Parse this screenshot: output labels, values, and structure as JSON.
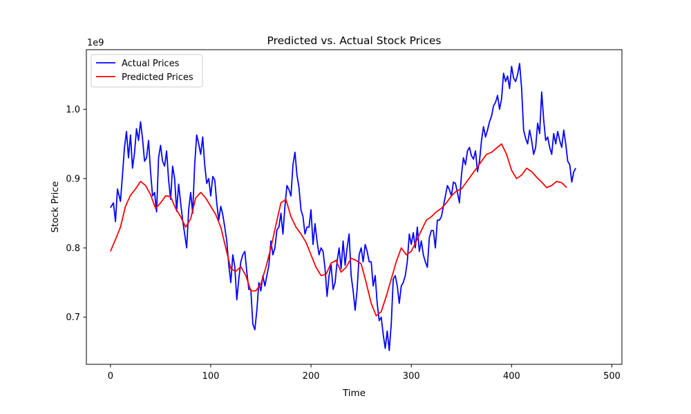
{
  "chart_data": {
    "type": "line",
    "title": "Predicted vs. Actual Stock Prices",
    "xlabel": "Time",
    "ylabel": "Stock Price",
    "y_offset_text": "1e9",
    "y_scale_factor": 1000000000,
    "xlim": [
      -24,
      510
    ],
    "ylim": [
      632000000.0,
      1086000000.0
    ],
    "xticks": [
      0,
      100,
      200,
      300,
      400,
      500
    ],
    "yticks": [
      700000000.0,
      800000000.0,
      900000000.0,
      1000000000.0
    ],
    "grid": false,
    "legend_position": "top-left",
    "series": [
      {
        "name": "Actual Prices",
        "color": "#0000ff",
        "points": [
          [
            0,
            0.858
          ],
          [
            3,
            0.865
          ],
          [
            5,
            0.838
          ],
          [
            7,
            0.885
          ],
          [
            10,
            0.867
          ],
          [
            12,
            0.905
          ],
          [
            14,
            0.945
          ],
          [
            16,
            0.968
          ],
          [
            18,
            0.93
          ],
          [
            20,
            0.963
          ],
          [
            22,
            0.915
          ],
          [
            24,
            0.937
          ],
          [
            26,
            0.972
          ],
          [
            28,
            0.955
          ],
          [
            30,
            0.982
          ],
          [
            32,
            0.958
          ],
          [
            34,
            0.925
          ],
          [
            36,
            0.93
          ],
          [
            38,
            0.955
          ],
          [
            40,
            0.91
          ],
          [
            42,
            0.875
          ],
          [
            44,
            0.88
          ],
          [
            46,
            0.852
          ],
          [
            48,
            0.93
          ],
          [
            50,
            0.948
          ],
          [
            52,
            0.925
          ],
          [
            54,
            0.918
          ],
          [
            56,
            0.94
          ],
          [
            58,
            0.898
          ],
          [
            60,
            0.87
          ],
          [
            62,
            0.918
          ],
          [
            64,
            0.9
          ],
          [
            66,
            0.853
          ],
          [
            68,
            0.892
          ],
          [
            70,
            0.865
          ],
          [
            72,
            0.84
          ],
          [
            74,
            0.82
          ],
          [
            76,
            0.8
          ],
          [
            78,
            0.855
          ],
          [
            80,
            0.88
          ],
          [
            82,
            0.85
          ],
          [
            84,
            0.92
          ],
          [
            86,
            0.963
          ],
          [
            88,
            0.95
          ],
          [
            90,
            0.935
          ],
          [
            92,
            0.96
          ],
          [
            94,
            0.92
          ],
          [
            96,
            0.893
          ],
          [
            98,
            0.9
          ],
          [
            100,
            0.875
          ],
          [
            102,
            0.903
          ],
          [
            104,
            0.898
          ],
          [
            106,
            0.865
          ],
          [
            108,
            0.84
          ],
          [
            110,
            0.86
          ],
          [
            112,
            0.848
          ],
          [
            114,
            0.83
          ],
          [
            116,
            0.81
          ],
          [
            118,
            0.775
          ],
          [
            120,
            0.75
          ],
          [
            122,
            0.79
          ],
          [
            124,
            0.773
          ],
          [
            126,
            0.725
          ],
          [
            128,
            0.755
          ],
          [
            130,
            0.78
          ],
          [
            132,
            0.79
          ],
          [
            134,
            0.795
          ],
          [
            136,
            0.765
          ],
          [
            138,
            0.74
          ],
          [
            140,
            0.74
          ],
          [
            142,
            0.69
          ],
          [
            144,
            0.682
          ],
          [
            146,
            0.71
          ],
          [
            148,
            0.75
          ],
          [
            150,
            0.738
          ],
          [
            152,
            0.76
          ],
          [
            154,
            0.745
          ],
          [
            156,
            0.76
          ],
          [
            158,
            0.775
          ],
          [
            160,
            0.81
          ],
          [
            162,
            0.79
          ],
          [
            164,
            0.8
          ],
          [
            166,
            0.826
          ],
          [
            168,
            0.83
          ],
          [
            170,
            0.85
          ],
          [
            172,
            0.82
          ],
          [
            174,
            0.86
          ],
          [
            176,
            0.89
          ],
          [
            178,
            0.884
          ],
          [
            180,
            0.875
          ],
          [
            182,
            0.92
          ],
          [
            184,
            0.938
          ],
          [
            186,
            0.905
          ],
          [
            188,
            0.887
          ],
          [
            190,
            0.855
          ],
          [
            192,
            0.845
          ],
          [
            194,
            0.82
          ],
          [
            196,
            0.83
          ],
          [
            198,
            0.83
          ],
          [
            200,
            0.855
          ],
          [
            202,
            0.805
          ],
          [
            204,
            0.835
          ],
          [
            206,
            0.81
          ],
          [
            208,
            0.79
          ],
          [
            210,
            0.8
          ],
          [
            212,
            0.795
          ],
          [
            214,
            0.77
          ],
          [
            216,
            0.73
          ],
          [
            218,
            0.76
          ],
          [
            220,
            0.776
          ],
          [
            222,
            0.74
          ],
          [
            224,
            0.75
          ],
          [
            226,
            0.78
          ],
          [
            228,
            0.8
          ],
          [
            230,
            0.77
          ],
          [
            232,
            0.81
          ],
          [
            234,
            0.775
          ],
          [
            236,
            0.8
          ],
          [
            238,
            0.82
          ],
          [
            240,
            0.76
          ],
          [
            242,
            0.738
          ],
          [
            244,
            0.71
          ],
          [
            246,
            0.74
          ],
          [
            248,
            0.79
          ],
          [
            250,
            0.8
          ],
          [
            252,
            0.78
          ],
          [
            254,
            0.805
          ],
          [
            256,
            0.795
          ],
          [
            258,
            0.78
          ],
          [
            260,
            0.78
          ],
          [
            262,
            0.745
          ],
          [
            264,
            0.76
          ],
          [
            266,
            0.72
          ],
          [
            268,
            0.695
          ],
          [
            270,
            0.7
          ],
          [
            272,
            0.675
          ],
          [
            274,
            0.655
          ],
          [
            276,
            0.68
          ],
          [
            278,
            0.652
          ],
          [
            280,
            0.69
          ],
          [
            282,
            0.755
          ],
          [
            284,
            0.76
          ],
          [
            286,
            0.745
          ],
          [
            288,
            0.72
          ],
          [
            290,
            0.745
          ],
          [
            292,
            0.75
          ],
          [
            294,
            0.76
          ],
          [
            296,
            0.78
          ],
          [
            298,
            0.82
          ],
          [
            300,
            0.805
          ],
          [
            302,
            0.822
          ],
          [
            304,
            0.8
          ],
          [
            306,
            0.83
          ],
          [
            308,
            0.795
          ],
          [
            310,
            0.81
          ],
          [
            312,
            0.79
          ],
          [
            314,
            0.78
          ],
          [
            316,
            0.772
          ],
          [
            318,
            0.815
          ],
          [
            320,
            0.825
          ],
          [
            322,
            0.825
          ],
          [
            324,
            0.8
          ],
          [
            326,
            0.84
          ],
          [
            328,
            0.84
          ],
          [
            330,
            0.845
          ],
          [
            332,
            0.86
          ],
          [
            334,
            0.875
          ],
          [
            336,
            0.89
          ],
          [
            338,
            0.884
          ],
          [
            340,
            0.875
          ],
          [
            342,
            0.895
          ],
          [
            344,
            0.893
          ],
          [
            346,
            0.88
          ],
          [
            348,
            0.865
          ],
          [
            350,
            0.905
          ],
          [
            352,
            0.93
          ],
          [
            354,
            0.92
          ],
          [
            356,
            0.94
          ],
          [
            358,
            0.945
          ],
          [
            360,
            0.933
          ],
          [
            362,
            0.928
          ],
          [
            364,
            0.94
          ],
          [
            366,
            0.91
          ],
          [
            368,
            0.925
          ],
          [
            370,
            0.955
          ],
          [
            372,
            0.975
          ],
          [
            374,
            0.96
          ],
          [
            376,
            0.97
          ],
          [
            378,
            0.982
          ],
          [
            380,
            0.99
          ],
          [
            382,
            1.005
          ],
          [
            384,
            1.01
          ],
          [
            386,
            1.02
          ],
          [
            388,
            1.0
          ],
          [
            390,
            1.015
          ],
          [
            392,
            1.052
          ],
          [
            394,
            1.04
          ],
          [
            396,
            1.048
          ],
          [
            398,
            1.03
          ],
          [
            400,
            1.062
          ],
          [
            402,
            1.045
          ],
          [
            404,
            1.04
          ],
          [
            406,
            1.05
          ],
          [
            408,
            1.066
          ],
          [
            410,
            1.03
          ],
          [
            412,
            0.97
          ],
          [
            414,
            0.958
          ],
          [
            416,
            0.95
          ],
          [
            418,
            0.97
          ],
          [
            420,
            0.955
          ],
          [
            422,
            0.935
          ],
          [
            424,
            0.945
          ],
          [
            426,
            0.98
          ],
          [
            428,
            0.965
          ],
          [
            430,
            1.025
          ],
          [
            432,
            0.985
          ],
          [
            434,
            0.955
          ],
          [
            436,
            0.96
          ],
          [
            438,
            0.945
          ],
          [
            440,
            0.935
          ],
          [
            442,
            0.965
          ],
          [
            444,
            0.95
          ],
          [
            446,
            0.968
          ],
          [
            448,
            0.955
          ],
          [
            450,
            0.945
          ],
          [
            452,
            0.97
          ],
          [
            454,
            0.95
          ],
          [
            456,
            0.925
          ],
          [
            458,
            0.92
          ],
          [
            460,
            0.895
          ],
          [
            462,
            0.91
          ],
          [
            464,
            0.915
          ]
        ]
      },
      {
        "name": "Predicted Prices",
        "color": "#ff0000",
        "points": [
          [
            0,
            0.795
          ],
          [
            5,
            0.812
          ],
          [
            10,
            0.83
          ],
          [
            15,
            0.86
          ],
          [
            20,
            0.876
          ],
          [
            25,
            0.885
          ],
          [
            30,
            0.896
          ],
          [
            35,
            0.89
          ],
          [
            40,
            0.877
          ],
          [
            45,
            0.857
          ],
          [
            50,
            0.865
          ],
          [
            55,
            0.875
          ],
          [
            60,
            0.874
          ],
          [
            65,
            0.857
          ],
          [
            70,
            0.845
          ],
          [
            75,
            0.83
          ],
          [
            80,
            0.842
          ],
          [
            85,
            0.872
          ],
          [
            90,
            0.88
          ],
          [
            95,
            0.872
          ],
          [
            100,
            0.86
          ],
          [
            105,
            0.848
          ],
          [
            110,
            0.83
          ],
          [
            115,
            0.8
          ],
          [
            120,
            0.77
          ],
          [
            125,
            0.766
          ],
          [
            130,
            0.773
          ],
          [
            135,
            0.76
          ],
          [
            140,
            0.738
          ],
          [
            145,
            0.738
          ],
          [
            150,
            0.748
          ],
          [
            155,
            0.772
          ],
          [
            160,
            0.8
          ],
          [
            165,
            0.833
          ],
          [
            170,
            0.865
          ],
          [
            175,
            0.87
          ],
          [
            180,
            0.845
          ],
          [
            185,
            0.83
          ],
          [
            190,
            0.82
          ],
          [
            195,
            0.808
          ],
          [
            200,
            0.79
          ],
          [
            205,
            0.772
          ],
          [
            210,
            0.76
          ],
          [
            215,
            0.762
          ],
          [
            220,
            0.778
          ],
          [
            225,
            0.782
          ],
          [
            230,
            0.765
          ],
          [
            235,
            0.772
          ],
          [
            240,
            0.785
          ],
          [
            245,
            0.782
          ],
          [
            250,
            0.777
          ],
          [
            255,
            0.75
          ],
          [
            260,
            0.72
          ],
          [
            265,
            0.702
          ],
          [
            270,
            0.708
          ],
          [
            275,
            0.73
          ],
          [
            280,
            0.755
          ],
          [
            285,
            0.78
          ],
          [
            290,
            0.8
          ],
          [
            295,
            0.79
          ],
          [
            300,
            0.795
          ],
          [
            305,
            0.81
          ],
          [
            310,
            0.825
          ],
          [
            315,
            0.84
          ],
          [
            320,
            0.845
          ],
          [
            325,
            0.852
          ],
          [
            330,
            0.857
          ],
          [
            335,
            0.865
          ],
          [
            340,
            0.875
          ],
          [
            345,
            0.882
          ],
          [
            350,
            0.885
          ],
          [
            355,
            0.895
          ],
          [
            360,
            0.905
          ],
          [
            365,
            0.915
          ],
          [
            370,
            0.925
          ],
          [
            375,
            0.935
          ],
          [
            380,
            0.938
          ],
          [
            385,
            0.944
          ],
          [
            390,
            0.95
          ],
          [
            395,
            0.935
          ],
          [
            400,
            0.912
          ],
          [
            405,
            0.9
          ],
          [
            410,
            0.905
          ],
          [
            415,
            0.915
          ],
          [
            420,
            0.91
          ],
          [
            425,
            0.902
          ],
          [
            430,
            0.895
          ],
          [
            435,
            0.887
          ],
          [
            440,
            0.89
          ],
          [
            445,
            0.896
          ],
          [
            450,
            0.894
          ],
          [
            455,
            0.887
          ]
        ]
      }
    ]
  }
}
